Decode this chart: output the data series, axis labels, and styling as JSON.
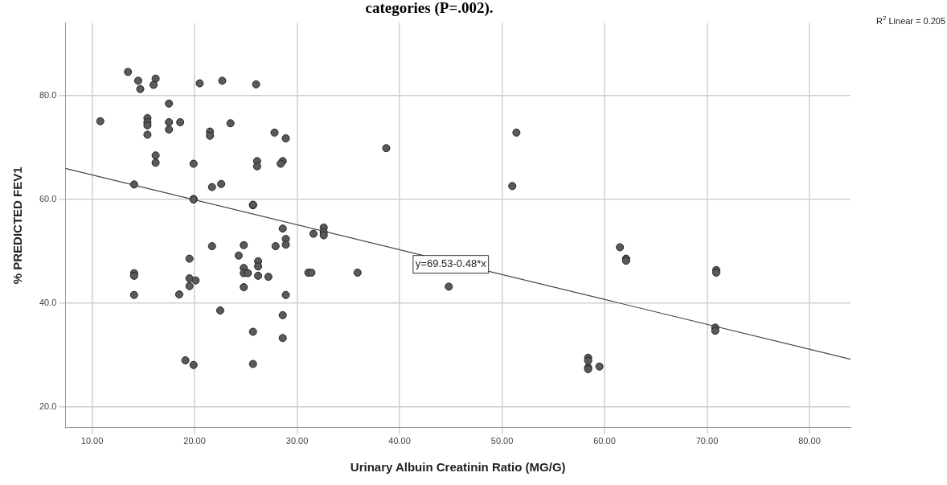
{
  "chart_data": {
    "type": "scatter",
    "title": "categories (P=.002).",
    "xlabel": "Urinary Albuin Creatinin Ratio (MG/G)",
    "ylabel": "% PREDICTED FEV1",
    "xlim": [
      7.4,
      84
    ],
    "ylim": [
      16,
      94
    ],
    "xticks": [
      {
        "value": 10,
        "label": "10.00"
      },
      {
        "value": 20,
        "label": "20.00"
      },
      {
        "value": 30,
        "label": "30.00"
      },
      {
        "value": 40,
        "label": "40.00"
      },
      {
        "value": 50,
        "label": "50.00"
      },
      {
        "value": 60,
        "label": "60.00"
      },
      {
        "value": 70,
        "label": "70.00"
      },
      {
        "value": 80,
        "label": "80.00"
      }
    ],
    "yticks": [
      {
        "value": 20,
        "label": "20.0"
      },
      {
        "value": 40,
        "label": "40.0"
      },
      {
        "value": 60,
        "label": "60.0"
      },
      {
        "value": 80,
        "label": "80.0"
      }
    ],
    "grid": true,
    "legend": false,
    "marker": "circle",
    "annotations": [
      "R$^{2}$ Linear = 0.205",
      {
        "text": "y=69.53-0.48*x",
        "x": 45,
        "y": 47.5
      }
    ],
    "series": [
      {
        "type": "scatter",
        "color": "#5a5a5a",
        "x": [
          13.5,
          14.5,
          16.2,
          16.0,
          14.7,
          20.5,
          22.7,
          26.0,
          17.5,
          10.8,
          15.4,
          15.4,
          15.4,
          15.4,
          17.5,
          17.5,
          18.6,
          21.5,
          21.5,
          23.5,
          27.8,
          28.9,
          16.2,
          16.2,
          19.9,
          26.1,
          26.1,
          28.6,
          28.4,
          14.1,
          21.7,
          22.6,
          19.9,
          19.9,
          25.7,
          25.7,
          28.6,
          28.9,
          28.9,
          21.7,
          24.8,
          27.9,
          14.1,
          14.1,
          14.1,
          18.5,
          19.5,
          19.5,
          20.1,
          19.5,
          24.3,
          24.8,
          24.8,
          25.2,
          26.2,
          26.2,
          26.2,
          27.2,
          24.8,
          28.9,
          22.5,
          28.6,
          25.7,
          28.6,
          19.1,
          19.9,
          25.7,
          31.1,
          38.7,
          31.6,
          32.6,
          32.6,
          32.6,
          31.4,
          35.9,
          44.8,
          51.4,
          51.0,
          61.5,
          62.1,
          62.1,
          70.9,
          70.9,
          70.8,
          70.8,
          58.4,
          58.4,
          58.4,
          58.4,
          59.5
        ],
        "values": [
          84.6,
          82.9,
          83.3,
          82.1,
          81.3,
          82.4,
          82.9,
          82.2,
          78.5,
          75.1,
          75.7,
          74.9,
          74.3,
          72.5,
          74.9,
          73.5,
          74.9,
          73.1,
          72.3,
          74.7,
          72.9,
          71.8,
          68.5,
          67.1,
          66.9,
          67.4,
          66.4,
          67.4,
          66.9,
          62.9,
          62.4,
          63.0,
          60.1,
          60.0,
          58.9,
          59.0,
          54.4,
          52.4,
          51.3,
          51.0,
          51.2,
          51.0,
          45.8,
          45.3,
          41.6,
          41.7,
          48.6,
          44.8,
          44.4,
          43.3,
          49.2,
          46.8,
          45.8,
          45.8,
          48.1,
          47.1,
          45.3,
          45.1,
          43.1,
          41.6,
          38.6,
          37.7,
          34.5,
          33.3,
          29.0,
          28.1,
          28.3,
          45.9,
          69.9,
          53.4,
          54.6,
          53.7,
          53.1,
          45.9,
          45.9,
          43.2,
          72.9,
          62.6,
          50.8,
          48.6,
          48.2,
          46.4,
          45.9,
          35.3,
          34.7,
          29.5,
          28.9,
          27.6,
          27.3,
          27.8
        ]
      },
      {
        "type": "line",
        "color": "#444444",
        "marker": "none",
        "x": [
          7.4,
          84
        ],
        "values": [
          66.0,
          29.2
        ]
      }
    ]
  }
}
